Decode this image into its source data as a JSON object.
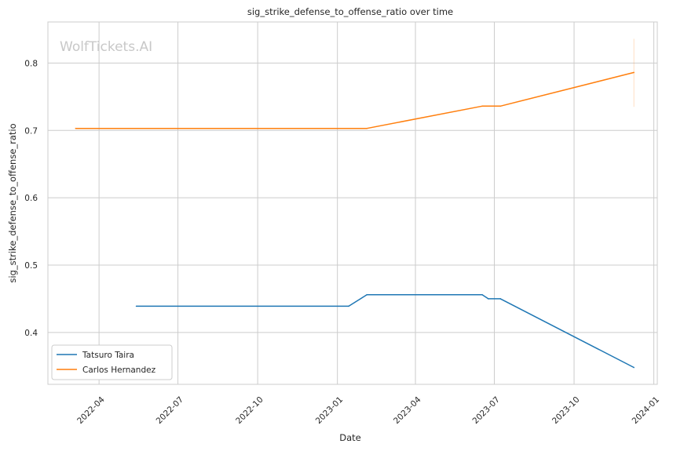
{
  "chart_data": {
    "type": "line",
    "title": "sig_strike_defense_to_offense_ratio over time",
    "xlabel": "Date",
    "ylabel": "sig_strike_defense_to_offense_ratio",
    "watermark": "WolfTickets.AI",
    "x_range": [
      "2022-02-01",
      "2024-01-05"
    ],
    "y_range": [
      0.323,
      0.861
    ],
    "x_ticks": [
      {
        "date": "2022-04-01",
        "label": "2022-04"
      },
      {
        "date": "2022-07-01",
        "label": "2022-07"
      },
      {
        "date": "2022-10-01",
        "label": "2022-10"
      },
      {
        "date": "2023-01-01",
        "label": "2023-01"
      },
      {
        "date": "2023-04-01",
        "label": "2023-04"
      },
      {
        "date": "2023-07-01",
        "label": "2023-07"
      },
      {
        "date": "2023-10-01",
        "label": "2023-10"
      },
      {
        "date": "2024-01-01",
        "label": "2024-01"
      }
    ],
    "y_ticks": [
      {
        "value": 0.4,
        "label": "0.4"
      },
      {
        "value": 0.5,
        "label": "0.5"
      },
      {
        "value": 0.6,
        "label": "0.6"
      },
      {
        "value": 0.7,
        "label": "0.7"
      },
      {
        "value": 0.8,
        "label": "0.8"
      }
    ],
    "grid": true,
    "legend_position": "lower-left",
    "series": [
      {
        "name": "Tatsuro Taira",
        "color": "#1f77b4",
        "points": [
          {
            "x": "2022-05-14",
            "y": 0.439
          },
          {
            "x": "2023-01-14",
            "y": 0.439
          },
          {
            "x": "2023-02-04",
            "y": 0.456
          },
          {
            "x": "2023-06-17",
            "y": 0.456
          },
          {
            "x": "2023-06-24",
            "y": 0.45
          },
          {
            "x": "2023-07-08",
            "y": 0.45
          },
          {
            "x": "2023-12-09",
            "y": 0.348
          }
        ]
      },
      {
        "name": "Carlos Hernandez",
        "color": "#ff7f0e",
        "points": [
          {
            "x": "2022-03-05",
            "y": 0.703
          },
          {
            "x": "2023-02-04",
            "y": 0.703
          },
          {
            "x": "2023-06-17",
            "y": 0.736
          },
          {
            "x": "2023-07-08",
            "y": 0.736
          },
          {
            "x": "2023-12-09",
            "y": 0.786
          }
        ],
        "error_bar": {
          "x": "2023-12-09",
          "low": 0.735,
          "high": 0.836
        }
      }
    ]
  }
}
